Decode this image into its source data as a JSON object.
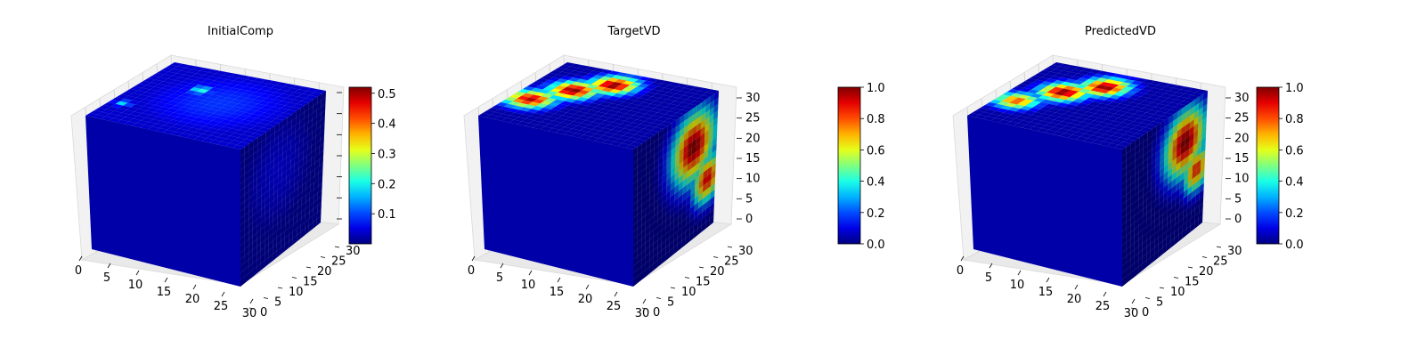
{
  "chart_data": [
    {
      "type": "voxel-3d",
      "title": "InitialComp",
      "colormap": "jet",
      "x_ticks": [
        0,
        5,
        10,
        15,
        20,
        25,
        30
      ],
      "y_ticks": [
        0,
        5,
        10,
        15,
        20,
        25,
        30
      ],
      "z_ticks": [],
      "colorbar": {
        "min": 0.0,
        "max": 0.52,
        "ticks": [
          "0.1",
          "0.2",
          "0.3",
          "0.4",
          "0.5"
        ],
        "tick_values": [
          0.1,
          0.2,
          0.3,
          0.4,
          0.5
        ]
      },
      "top_hotspots": [
        {
          "u": 0.36,
          "v": 0.32,
          "value": 0.22,
          "spread": 0.05
        },
        {
          "u": 0.08,
          "v": 0.72,
          "value": 0.18,
          "spread": 0.04
        },
        {
          "u": 0.55,
          "v": 0.45,
          "value": 0.09,
          "spread": 0.35
        }
      ],
      "side_hotspots": [
        {
          "u": 0.45,
          "v": 0.35,
          "value": 0.06,
          "spread": 0.3
        }
      ]
    },
    {
      "type": "voxel-3d",
      "title": "TargetVD",
      "colormap": "jet",
      "x_ticks": [
        0,
        5,
        10,
        15,
        20,
        25,
        30
      ],
      "y_ticks": [
        0,
        5,
        10,
        15,
        20,
        25,
        30
      ],
      "z_ticks": [
        0,
        5,
        10,
        15,
        20,
        25,
        30
      ],
      "colorbar": {
        "min": 0.0,
        "max": 1.0,
        "ticks": [
          "0.0",
          "0.2",
          "0.4",
          "0.6",
          "0.8",
          "1.0"
        ],
        "tick_values": [
          0.0,
          0.2,
          0.4,
          0.6,
          0.8,
          1.0
        ]
      },
      "top_hotspots": [
        {
          "u": 0.42,
          "v": 0.2,
          "value": 1.0,
          "spread": 0.1
        },
        {
          "u": 0.26,
          "v": 0.38,
          "value": 1.0,
          "spread": 0.1
        },
        {
          "u": 0.12,
          "v": 0.62,
          "value": 0.95,
          "spread": 0.1
        }
      ],
      "side_hotspots": [
        {
          "u": 0.72,
          "v": 0.3,
          "value": 1.0,
          "spread": 0.18
        },
        {
          "u": 0.9,
          "v": 0.62,
          "value": 0.9,
          "spread": 0.12
        }
      ]
    },
    {
      "type": "voxel-3d",
      "title": "PredictedVD",
      "colormap": "jet",
      "x_ticks": [
        0,
        5,
        10,
        15,
        20,
        25,
        30
      ],
      "y_ticks": [
        0,
        5,
        10,
        15,
        20,
        25,
        30
      ],
      "z_ticks": [
        0,
        5,
        10,
        15,
        20,
        25,
        30
      ],
      "colorbar": {
        "min": 0.0,
        "max": 1.0,
        "ticks": [
          "0.0",
          "0.2",
          "0.4",
          "0.6",
          "0.8",
          "1.0"
        ],
        "tick_values": [
          0.0,
          0.2,
          0.4,
          0.6,
          0.8,
          1.0
        ]
      },
      "top_hotspots": [
        {
          "u": 0.45,
          "v": 0.22,
          "value": 1.0,
          "spread": 0.1
        },
        {
          "u": 0.28,
          "v": 0.4,
          "value": 1.0,
          "spread": 0.1
        },
        {
          "u": 0.12,
          "v": 0.65,
          "value": 0.8,
          "spread": 0.09
        }
      ],
      "side_hotspots": [
        {
          "u": 0.75,
          "v": 0.28,
          "value": 1.0,
          "spread": 0.17
        },
        {
          "u": 0.9,
          "v": 0.55,
          "value": 0.85,
          "spread": 0.11
        }
      ]
    }
  ]
}
